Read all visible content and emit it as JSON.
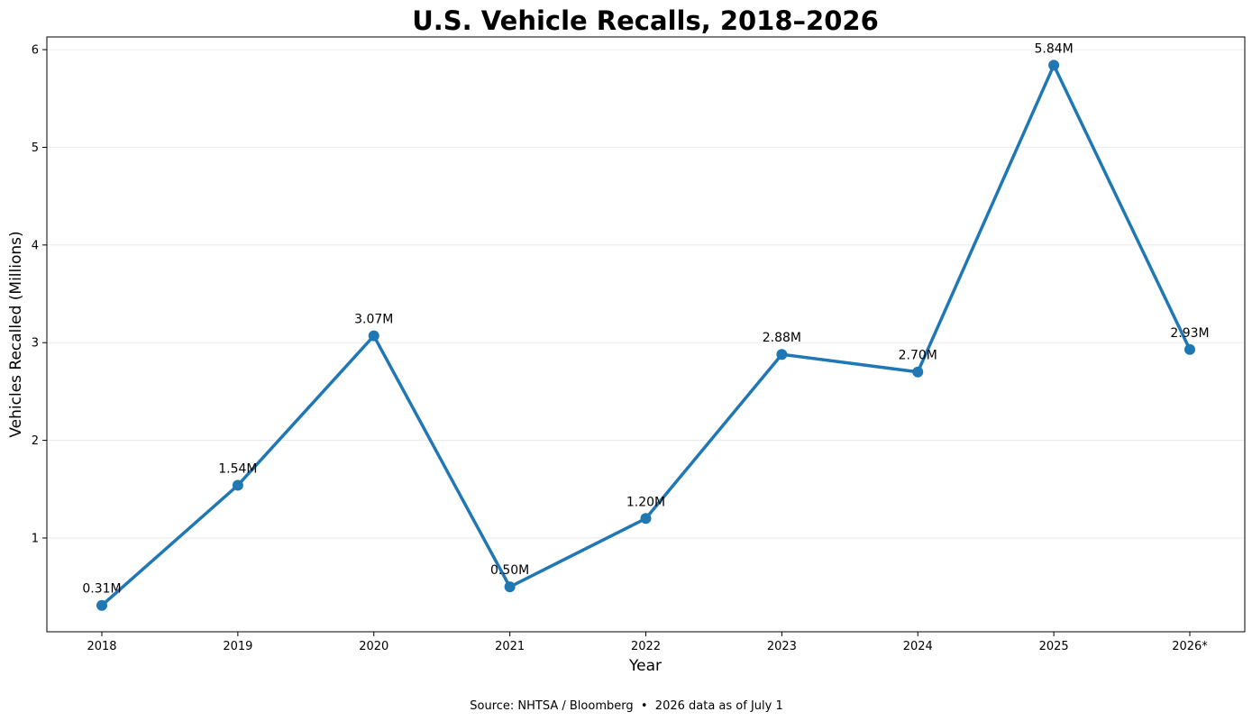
{
  "chart_data": {
    "type": "line",
    "title": "U.S. Vehicle Recalls, 2018–2026",
    "xlabel": "Year",
    "ylabel": "Vehicles Recalled (Millions)",
    "categories": [
      "2018",
      "2019",
      "2020",
      "2021",
      "2022",
      "2023",
      "2024",
      "2025",
      "2026*"
    ],
    "values": [
      0.31,
      1.54,
      3.07,
      0.5,
      1.2,
      2.88,
      2.7,
      5.84,
      2.93
    ],
    "data_labels": [
      "0.31M",
      "1.54M",
      "3.07M",
      "0.50M",
      "1.20M",
      "2.88M",
      "2.70M",
      "5.84M",
      "2.93M"
    ],
    "ylim": [
      0.04,
      6.13
    ],
    "yticks": [
      1,
      2,
      3,
      4,
      5,
      6
    ],
    "grid": "horizontal",
    "line_color": "#1f77b4",
    "source_note": "Source: NHTSA / Bloomberg  •  2026 data as of July 1"
  }
}
